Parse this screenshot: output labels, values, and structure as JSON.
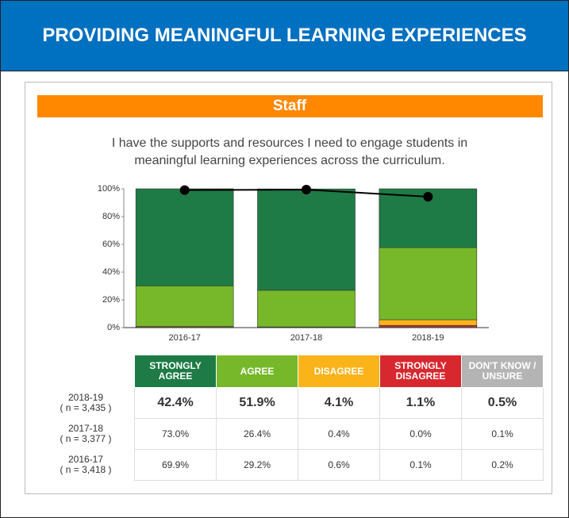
{
  "header": {
    "title": "PROVIDING MEANINGFUL LEARNING EXPERIENCES"
  },
  "chart_data": {
    "type": "stacked-bar",
    "title": "Staff",
    "subtitle": [
      "I have the supports and resources I need to engage students in",
      "meaningful learning experiences across the curriculum."
    ],
    "categories": [
      "2016-17",
      "2017-18",
      "2018-19"
    ],
    "ylim": [
      0,
      100
    ],
    "yticks": [
      {
        "value": 0,
        "label": "0%"
      },
      {
        "value": 20,
        "label": "20%"
      },
      {
        "value": 40,
        "label": "40%"
      },
      {
        "value": 60,
        "label": "60%"
      },
      {
        "value": 80,
        "label": "80%"
      },
      {
        "value": 100,
        "label": "100%"
      }
    ],
    "series": [
      {
        "name": "STRONGLY AGREE",
        "color": "#1e7b45",
        "values": [
          69.9,
          73.0,
          42.4
        ],
        "value_labels": [
          "69.9%",
          "73.0%",
          "42.4%"
        ]
      },
      {
        "name": "AGREE",
        "color": "#76b82a",
        "values": [
          29.2,
          26.4,
          51.9
        ],
        "value_labels": [
          "29.2%",
          "26.4%",
          "51.9%"
        ]
      },
      {
        "name": "DISAGREE",
        "color": "#fbb31a",
        "values": [
          0.6,
          0.4,
          4.1
        ],
        "value_labels": [
          "0.6%",
          "0.4%",
          "4.1%"
        ]
      },
      {
        "name": "STRONGLY DISAGREE",
        "color": "#d7282f",
        "values": [
          0.1,
          0.0,
          1.1
        ],
        "value_labels": [
          "0.1%",
          "0.0%",
          "1.1%"
        ]
      },
      {
        "name": "DON'T KNOW / UNSURE",
        "color": "#b4b4b4",
        "values": [
          0.2,
          0.1,
          0.5
        ],
        "value_labels": [
          "0.2%",
          "0.1%",
          "0.5%"
        ]
      }
    ],
    "line": {
      "type": "line",
      "color": "#000000",
      "values": [
        99.1,
        99.4,
        94.3
      ]
    }
  },
  "table": {
    "row_notes": [
      "( n = 3,435 )",
      "( n = 3,377 )",
      "( n = 3,418 )"
    ]
  }
}
